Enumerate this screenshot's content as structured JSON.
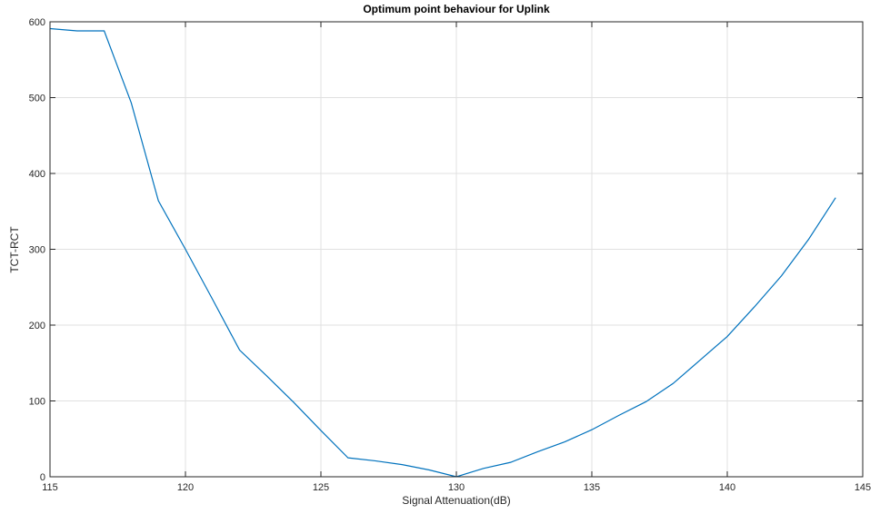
{
  "chart_data": {
    "type": "line",
    "title": "Optimum point behaviour for Uplink",
    "xlabel": "Signal Attenuation(dB)",
    "ylabel": "TCT-RCT",
    "xlim": [
      115,
      145
    ],
    "ylim": [
      0,
      600
    ],
    "xticks": [
      115,
      120,
      125,
      130,
      135,
      140,
      145
    ],
    "yticks": [
      0,
      100,
      200,
      300,
      400,
      500,
      600
    ],
    "grid": true,
    "series": [
      {
        "color": "#0072BD",
        "x": [
          115,
          116,
          117,
          118,
          119,
          120,
          121,
          122,
          123,
          124,
          125,
          126,
          127,
          128,
          129,
          130,
          131,
          132,
          133,
          134,
          135,
          136,
          137,
          138,
          139,
          140,
          141,
          142,
          143,
          144
        ],
        "y": [
          591,
          588,
          588,
          493,
          364,
          300,
          234,
          167,
          133,
          98,
          61,
          25,
          21,
          16,
          9,
          0,
          11,
          19,
          33,
          46,
          62,
          81,
          99,
          123,
          154,
          185,
          224,
          265,
          313,
          368
        ]
      }
    ]
  }
}
